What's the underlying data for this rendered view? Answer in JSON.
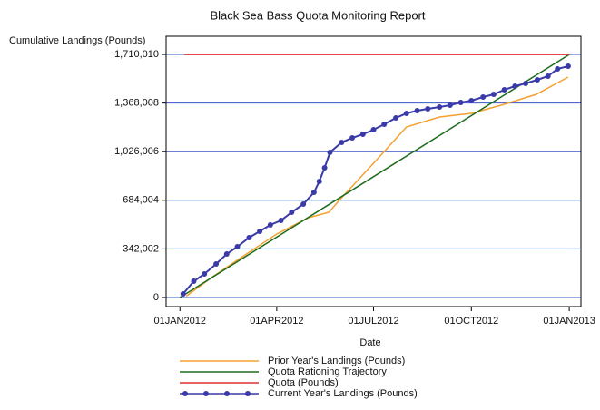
{
  "chart_data": {
    "type": "line",
    "title": "Black Sea Bass Quota Monitoring Report",
    "y_label": "Cumulative Landings (Pounds)",
    "x_label": "Date",
    "xlim": [
      "2011-12-19",
      "2013-01-12"
    ],
    "xticks": [
      {
        "value": "2012-01-01",
        "label": "01JAN2012"
      },
      {
        "value": "2012-04-01",
        "label": "01APR2012"
      },
      {
        "value": "2012-07-01",
        "label": "01JUL2012"
      },
      {
        "value": "2012-10-01",
        "label": "01OCT2012"
      },
      {
        "value": "2013-01-01",
        "label": "01JAN2013"
      }
    ],
    "ylim": [
      -64000,
      1838000
    ],
    "yticks": [
      0,
      {
        "value": 342002,
        "label": "342,002"
      },
      {
        "value": 684004,
        "label": "684,004"
      },
      {
        "value": 1026006,
        "label": "1,026,006"
      },
      {
        "value": 1368008,
        "label": "1,368,008"
      },
      {
        "value": 1710010,
        "label": "1,710,010"
      }
    ],
    "grid": true,
    "series": [
      {
        "name": "Prior Year's Landings (Pounds)",
        "color": "#f5a030",
        "markers": false,
        "x": [
          "2012-01-07",
          "2012-02-01",
          "2012-03-01",
          "2012-04-01",
          "2012-05-01",
          "2012-05-20",
          "2012-06-01",
          "2012-07-01",
          "2012-08-01",
          "2012-09-01",
          "2012-10-01",
          "2012-11-01",
          "2012-12-01",
          "2012-12-31"
        ],
        "values": [
          10000,
          147000,
          293500,
          446700,
          561500,
          600000,
          702000,
          944400,
          1199600,
          1269800,
          1295300,
          1359200,
          1429300,
          1550600
        ]
      },
      {
        "name": "Quota Rationing Trajectory",
        "color": "#1e6b1e",
        "markers": false,
        "x": [
          "2012-01-01",
          "2013-01-01"
        ],
        "values": [
          0,
          1710010
        ]
      },
      {
        "name": "Quota (Pounds)",
        "color": "#e03030",
        "markers": false,
        "x": [
          "2012-01-05",
          "2013-01-01"
        ],
        "values": [
          1710010,
          1710010
        ]
      },
      {
        "name": "Current Year's Landings (Pounds)",
        "color": "#3a3aa8",
        "markers": true,
        "x": [
          "2012-01-04",
          "2012-01-14",
          "2012-01-24",
          "2012-02-04",
          "2012-02-14",
          "2012-02-24",
          "2012-03-06",
          "2012-03-16",
          "2012-03-26",
          "2012-04-05",
          "2012-04-15",
          "2012-04-26",
          "2012-05-06",
          "2012-05-11",
          "2012-05-16",
          "2012-05-21",
          "2012-06-01",
          "2012-06-11",
          "2012-06-21",
          "2012-07-01",
          "2012-07-11",
          "2012-07-22",
          "2012-08-01",
          "2012-08-11",
          "2012-08-21",
          "2012-09-01",
          "2012-09-11",
          "2012-09-21",
          "2012-10-01",
          "2012-10-12",
          "2012-10-22",
          "2012-11-01",
          "2012-11-11",
          "2012-11-21",
          "2012-12-02",
          "2012-12-12",
          "2012-12-21",
          "2012-12-31"
        ],
        "values": [
          25500,
          114900,
          165900,
          236100,
          306300,
          357300,
          421100,
          465800,
          510500,
          542400,
          599800,
          657200,
          740200,
          816800,
          912500,
          1021000,
          1091200,
          1123100,
          1148600,
          1180500,
          1218800,
          1263400,
          1295300,
          1314500,
          1327200,
          1340000,
          1352800,
          1371900,
          1384700,
          1410200,
          1429300,
          1461200,
          1486800,
          1505900,
          1531400,
          1557000,
          1608000,
          1627200
        ]
      }
    ]
  }
}
